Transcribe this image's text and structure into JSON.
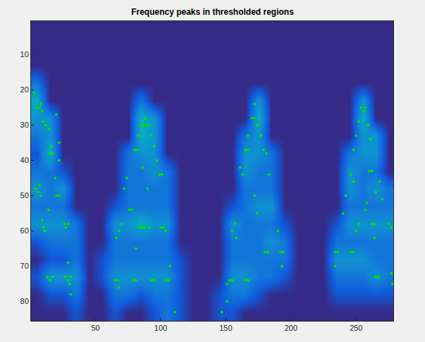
{
  "chart_data": {
    "type": "heatmap",
    "title": "Frequency peaks in thresholded regions",
    "x": [
      5,
      15,
      25,
      35,
      45,
      55,
      65,
      75,
      85,
      95,
      105,
      115,
      125,
      135,
      145,
      155,
      165,
      175,
      185,
      195,
      205,
      215,
      225,
      235,
      245,
      255,
      265,
      275
    ],
    "y": [
      3,
      8,
      13,
      18,
      23,
      28,
      33,
      38,
      43,
      48,
      53,
      58,
      63,
      68,
      73,
      78,
      83
    ],
    "z": [
      [
        0,
        0,
        0,
        0,
        0,
        0,
        0,
        0,
        0,
        0,
        0,
        0,
        0,
        0,
        0,
        0,
        0,
        0,
        0,
        0,
        0,
        0,
        0,
        0,
        0,
        0,
        0,
        0
      ],
      [
        0,
        0,
        0,
        0,
        0,
        0,
        0,
        0,
        0,
        0,
        0,
        0,
        0,
        0,
        0,
        0,
        0,
        0,
        0,
        0,
        0,
        0,
        0,
        0,
        0,
        0,
        0,
        0
      ],
      [
        0,
        0,
        0,
        0,
        0,
        0,
        0,
        0,
        0,
        0,
        0,
        0,
        0,
        0,
        0,
        0,
        0,
        0,
        0,
        0,
        0,
        0,
        0,
        0,
        0,
        0,
        0,
        0
      ],
      [
        2,
        0,
        0,
        0,
        0,
        0,
        0,
        0,
        0,
        0,
        0,
        0,
        0,
        0,
        0,
        0,
        0,
        0,
        0,
        0,
        0,
        0,
        0,
        0,
        0,
        0,
        0,
        0
      ],
      [
        4,
        0,
        0,
        0,
        0,
        0,
        0,
        0,
        2,
        0,
        0,
        0,
        0,
        0,
        0,
        0,
        0,
        3,
        0,
        0,
        0,
        0,
        0,
        0,
        0,
        3,
        0,
        0
      ],
      [
        3,
        3,
        0,
        0,
        0,
        0,
        0,
        0,
        4,
        3,
        0,
        0,
        0,
        0,
        0,
        0,
        0,
        4,
        0,
        0,
        0,
        0,
        0,
        0,
        0,
        4,
        0,
        0
      ],
      [
        2,
        3,
        0,
        0,
        0,
        0,
        0,
        0,
        4,
        3,
        0,
        0,
        0,
        0,
        0,
        0,
        2,
        3,
        0,
        0,
        0,
        0,
        0,
        0,
        0,
        3,
        3,
        0
      ],
      [
        1,
        4,
        0,
        0,
        0,
        0,
        0,
        2,
        3,
        3,
        0,
        0,
        0,
        0,
        0,
        0,
        3,
        3,
        2,
        0,
        0,
        0,
        0,
        0,
        2,
        3,
        3,
        0
      ],
      [
        2,
        2,
        1,
        0,
        0,
        0,
        0,
        2,
        2,
        3,
        2,
        0,
        0,
        0,
        0,
        0,
        3,
        2,
        2,
        0,
        0,
        0,
        0,
        0,
        3,
        2,
        2,
        0
      ],
      [
        3,
        2,
        3,
        0,
        0,
        0,
        0,
        2,
        2,
        2,
        2,
        0,
        0,
        0,
        0,
        0,
        2,
        2,
        2,
        0,
        0,
        0,
        0,
        0,
        3,
        2,
        3,
        2
      ],
      [
        2,
        2,
        2,
        0,
        0,
        0,
        1,
        2,
        2,
        2,
        2,
        0,
        0,
        0,
        0,
        1,
        2,
        3,
        3,
        0,
        0,
        0,
        0,
        0,
        2,
        2,
        2,
        2
      ],
      [
        3,
        3,
        3,
        2,
        0,
        0,
        3,
        3,
        4,
        3,
        3,
        0,
        0,
        0,
        0,
        3,
        2,
        2,
        2,
        1,
        0,
        0,
        0,
        1,
        3,
        3,
        3,
        3
      ],
      [
        1,
        2,
        2,
        2,
        0,
        0,
        2,
        2,
        2,
        2,
        2,
        0,
        0,
        0,
        0,
        2,
        2,
        2,
        3,
        2,
        0,
        0,
        0,
        2,
        2,
        2,
        2,
        2
      ],
      [
        0,
        1,
        1,
        2,
        0,
        1,
        2,
        2,
        2,
        2,
        2,
        1,
        0,
        0,
        0,
        2,
        2,
        2,
        2,
        2,
        0,
        0,
        0,
        3,
        3,
        3,
        2,
        2
      ],
      [
        1,
        3,
        3,
        3,
        0,
        1,
        3,
        3,
        3,
        3,
        3,
        1,
        0,
        0,
        0,
        3,
        3,
        2,
        2,
        1,
        0,
        0,
        0,
        2,
        2,
        2,
        3,
        2
      ],
      [
        0,
        1,
        1,
        2,
        0,
        0,
        2,
        2,
        1,
        2,
        2,
        1,
        0,
        0,
        1,
        2,
        2,
        1,
        0,
        0,
        0,
        0,
        0,
        1,
        1,
        1,
        1,
        1
      ],
      [
        0,
        0,
        0,
        1,
        0,
        0,
        1,
        0,
        0,
        1,
        2,
        1,
        0,
        0,
        1,
        1,
        0,
        0,
        0,
        0,
        0,
        0,
        0,
        0,
        0,
        0,
        0,
        0
      ]
    ],
    "zlim": [
      0,
      12
    ],
    "xlim": [
      0.5,
      278.5
    ],
    "ylim": [
      85.5,
      0.5
    ],
    "xticks": [
      50,
      100,
      150,
      200,
      250
    ],
    "yticks": [
      10,
      20,
      30,
      40,
      50,
      60,
      70,
      80
    ],
    "series": [
      {
        "type": "scatter",
        "color": "#00e000",
        "marker": "circle",
        "points": [
          [
            3,
            21
          ],
          [
            5,
            25
          ],
          [
            7,
            25
          ],
          [
            8,
            24
          ],
          [
            9,
            26
          ],
          [
            10,
            29
          ],
          [
            12,
            30
          ],
          [
            14,
            31
          ],
          [
            16,
            36
          ],
          [
            15,
            38
          ],
          [
            17,
            38
          ],
          [
            20,
            27
          ],
          [
            22,
            35
          ],
          [
            4,
            48
          ],
          [
            6,
            49
          ],
          [
            8,
            50
          ],
          [
            7,
            47
          ],
          [
            19,
            45
          ],
          [
            20,
            50
          ],
          [
            22,
            50
          ],
          [
            9,
            57
          ],
          [
            10,
            59
          ],
          [
            11,
            60
          ],
          [
            14,
            54
          ],
          [
            26,
            58
          ],
          [
            27,
            59
          ],
          [
            29,
            58
          ],
          [
            15,
            74
          ],
          [
            17,
            73
          ],
          [
            13,
            73
          ],
          [
            27,
            73
          ],
          [
            29,
            74
          ],
          [
            30,
            75
          ],
          [
            31,
            73
          ],
          [
            29,
            69
          ],
          [
            31,
            78
          ],
          [
            22,
            40
          ],
          [
            88,
            28
          ],
          [
            85,
            30
          ],
          [
            87,
            30
          ],
          [
            89,
            30
          ],
          [
            91,
            30
          ],
          [
            83,
            33
          ],
          [
            93,
            33
          ],
          [
            80,
            37
          ],
          [
            82,
            37
          ],
          [
            95,
            36
          ],
          [
            97,
            40
          ],
          [
            99,
            44
          ],
          [
            101,
            44
          ],
          [
            86,
            42
          ],
          [
            90,
            48
          ],
          [
            76,
            54
          ],
          [
            78,
            54
          ],
          [
            72,
            48
          ],
          [
            74,
            45
          ],
          [
            70,
            58
          ],
          [
            68,
            60
          ],
          [
            66,
            62
          ],
          [
            84,
            59
          ],
          [
            86,
            59
          ],
          [
            88,
            59
          ],
          [
            91,
            59
          ],
          [
            100,
            59
          ],
          [
            102,
            59
          ],
          [
            104,
            60
          ],
          [
            81,
            65
          ],
          [
            65,
            74
          ],
          [
            67,
            74
          ],
          [
            68,
            76
          ],
          [
            79,
            74
          ],
          [
            81,
            74
          ],
          [
            93,
            74
          ],
          [
            95,
            74
          ],
          [
            104,
            74
          ],
          [
            106,
            74
          ],
          [
            107,
            70
          ],
          [
            111,
            83
          ],
          [
            172,
            24
          ],
          [
            170,
            28
          ],
          [
            172,
            28
          ],
          [
            174,
            30
          ],
          [
            167,
            33
          ],
          [
            177,
            33
          ],
          [
            165,
            37
          ],
          [
            167,
            37
          ],
          [
            179,
            37
          ],
          [
            181,
            38
          ],
          [
            163,
            44
          ],
          [
            161,
            42
          ],
          [
            183,
            44
          ],
          [
            174,
            55
          ],
          [
            172,
            50
          ],
          [
            157,
            58
          ],
          [
            155,
            60
          ],
          [
            158,
            62
          ],
          [
            151,
            75
          ],
          [
            153,
            74
          ],
          [
            155,
            74
          ],
          [
            165,
            74
          ],
          [
            167,
            74
          ],
          [
            180,
            66
          ],
          [
            182,
            66
          ],
          [
            190,
            60
          ],
          [
            192,
            66
          ],
          [
            194,
            66
          ],
          [
            193,
            70
          ],
          [
            151,
            80
          ],
          [
            147,
            83
          ],
          [
            256,
            26
          ],
          [
            254,
            25
          ],
          [
            257,
            25
          ],
          [
            252,
            29
          ],
          [
            259,
            30
          ],
          [
            261,
            34
          ],
          [
            250,
            33
          ],
          [
            248,
            37
          ],
          [
            246,
            44
          ],
          [
            248,
            46
          ],
          [
            260,
            43
          ],
          [
            262,
            43
          ],
          [
            268,
            46
          ],
          [
            265,
            49
          ],
          [
            270,
            51
          ],
          [
            258,
            52
          ],
          [
            257,
            54
          ],
          [
            252,
            58
          ],
          [
            250,
            60
          ],
          [
            262,
            58
          ],
          [
            264,
            58
          ],
          [
            275,
            58
          ],
          [
            277,
            59
          ],
          [
            234,
            66
          ],
          [
            236,
            66
          ],
          [
            246,
            66
          ],
          [
            248,
            66
          ],
          [
            240,
            55
          ],
          [
            242,
            50
          ],
          [
            265,
            73
          ],
          [
            267,
            73
          ],
          [
            277,
            72
          ],
          [
            278,
            75
          ],
          [
            234,
            70
          ],
          [
            264,
            62
          ]
        ]
      }
    ]
  }
}
